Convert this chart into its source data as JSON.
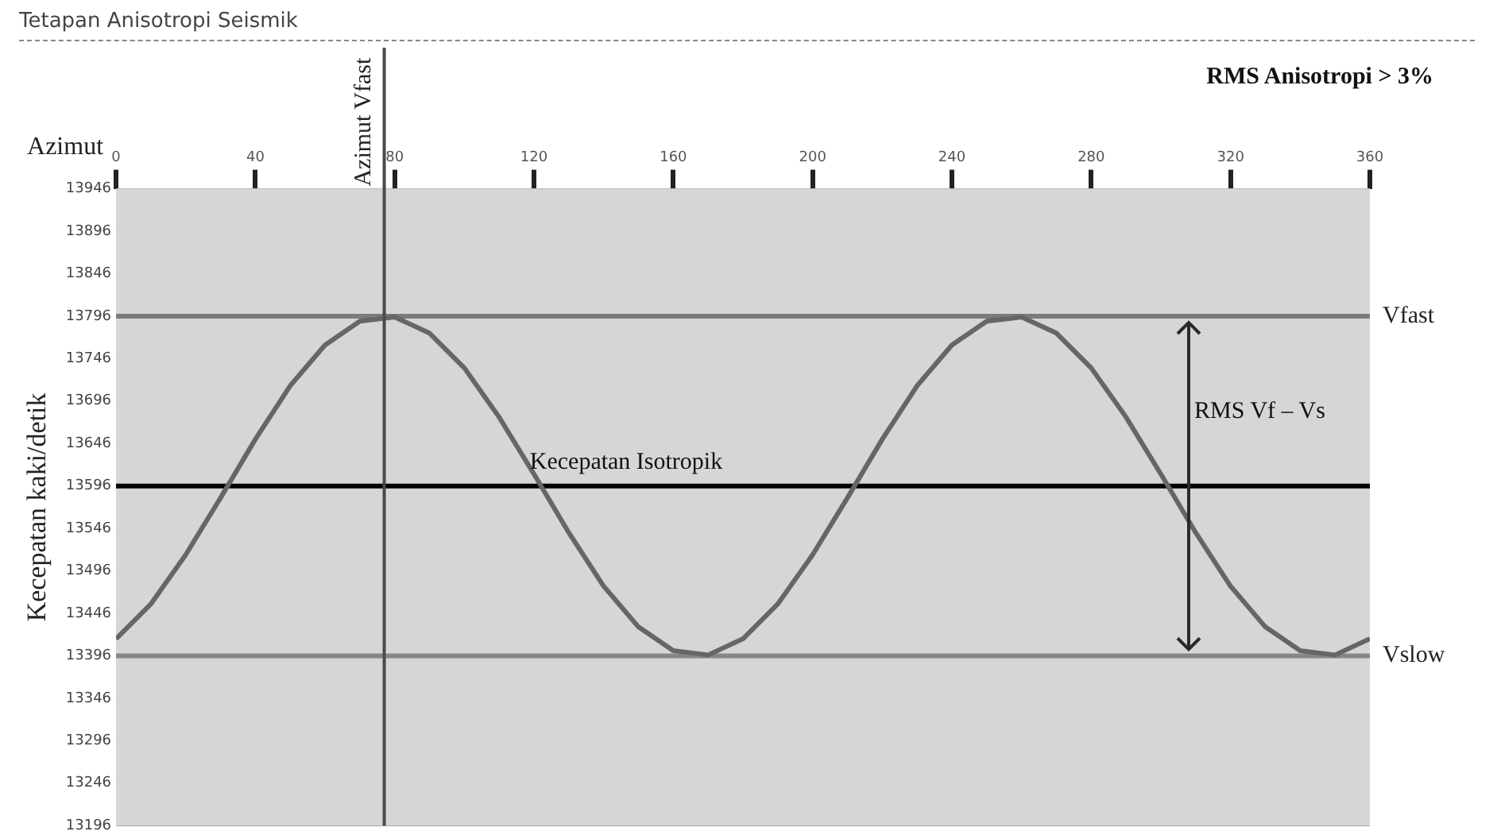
{
  "chart_data": {
    "type": "line",
    "title": "Tetapan Anisotropi Seismik",
    "xlabel": "Azimut",
    "ylabel": "Kecepatan kaki/detik",
    "x": [
      0,
      10,
      20,
      30,
      40,
      50,
      60,
      70,
      80,
      90,
      100,
      110,
      120,
      130,
      140,
      150,
      160,
      170,
      180,
      190,
      200,
      210,
      220,
      230,
      240,
      250,
      260,
      270,
      280,
      290,
      300,
      310,
      320,
      330,
      340,
      350,
      360
    ],
    "series": [
      {
        "color": "#666666",
        "values": [
          13416,
          13457,
          13515,
          13582,
          13651,
          13714,
          13762,
          13790,
          13795,
          13776,
          13735,
          13677,
          13610,
          13541,
          13478,
          13430,
          13402,
          13397,
          13416,
          13457,
          13515,
          13582,
          13651,
          13714,
          13762,
          13790,
          13795,
          13776,
          13735,
          13677,
          13610,
          13541,
          13478,
          13430,
          13402,
          13397,
          13416
        ]
      }
    ],
    "xlim": [
      0,
      360
    ],
    "xticks": [
      0,
      40,
      80,
      120,
      160,
      200,
      240,
      280,
      320,
      360
    ],
    "ylim": [
      13196,
      13946
    ],
    "yticks": [
      13196,
      13246,
      13296,
      13346,
      13396,
      13446,
      13496,
      13546,
      13596,
      13646,
      13696,
      13746,
      13796,
      13846,
      13896,
      13946
    ],
    "ref_lines": [
      {
        "axis": "y",
        "value": 13796,
        "label": "Vfast",
        "color": "#7b7b7b"
      },
      {
        "axis": "y",
        "value": 13396,
        "label": "Vslow",
        "color": "#878787"
      },
      {
        "axis": "y",
        "value": 13596,
        "color": "#000000"
      },
      {
        "axis": "x",
        "value": 77,
        "label": "Azimut Vfast",
        "color": "#4a4a4a"
      }
    ],
    "annotations": [
      "Kecepatan Isotropik",
      "RMS Vf – Vs",
      "RMS Anisotropi > 3%"
    ],
    "grid": "y",
    "legend": false,
    "marker": "none",
    "line_style": "solid"
  }
}
